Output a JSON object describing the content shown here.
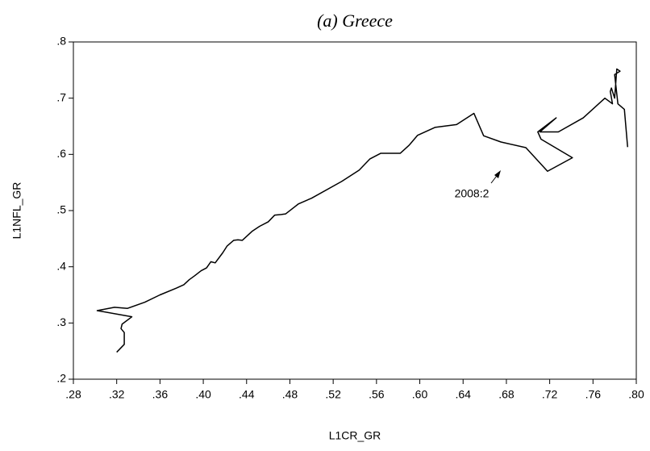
{
  "chart_data": {
    "type": "line",
    "title": "(a) Greece",
    "x_label": "L1CR_GR",
    "y_label": "L1NFL_GR",
    "color": "#000000",
    "annotation": "2008:2",
    "x": [
      0.32,
      0.327,
      0.327,
      0.324,
      0.325,
      0.334,
      0.302,
      0.318,
      0.33,
      0.346,
      0.36,
      0.375,
      0.382,
      0.387,
      0.392,
      0.398,
      0.403,
      0.407,
      0.411,
      0.418,
      0.422,
      0.428,
      0.432,
      0.436,
      0.445,
      0.452,
      0.46,
      0.466,
      0.472,
      0.476,
      0.488,
      0.5,
      0.528,
      0.544,
      0.554,
      0.564,
      0.582,
      0.59,
      0.598,
      0.614,
      0.634,
      0.65,
      0.659,
      0.675,
      0.698,
      0.718,
      0.741,
      0.712,
      0.709,
      0.726,
      0.711,
      0.728,
      0.751,
      0.771,
      0.778,
      0.776,
      0.777,
      0.78,
      0.782,
      0.785,
      0.78,
      0.783,
      0.789,
      0.792
    ],
    "values": [
      0.248,
      0.262,
      0.283,
      0.29,
      0.298,
      0.311,
      0.322,
      0.328,
      0.326,
      0.337,
      0.35,
      0.362,
      0.368,
      0.377,
      0.384,
      0.393,
      0.398,
      0.409,
      0.407,
      0.425,
      0.437,
      0.447,
      0.448,
      0.447,
      0.463,
      0.472,
      0.48,
      0.492,
      0.493,
      0.494,
      0.512,
      0.522,
      0.552,
      0.572,
      0.592,
      0.602,
      0.602,
      0.616,
      0.634,
      0.648,
      0.653,
      0.673,
      0.633,
      0.622,
      0.612,
      0.57,
      0.594,
      0.627,
      0.64,
      0.665,
      0.64,
      0.64,
      0.665,
      0.7,
      0.69,
      0.712,
      0.718,
      0.7,
      0.752,
      0.748,
      0.742,
      0.69,
      0.68,
      0.613
    ],
    "xlim": [
      0.28,
      0.8
    ],
    "xticks": [
      {
        "value": 0.28,
        "label": ".28"
      },
      {
        "value": 0.32,
        "label": ".32"
      },
      {
        "value": 0.36,
        "label": ".36"
      },
      {
        "value": 0.4,
        "label": ".40"
      },
      {
        "value": 0.44,
        "label": ".44"
      },
      {
        "value": 0.48,
        "label": ".48"
      },
      {
        "value": 0.52,
        "label": ".52"
      },
      {
        "value": 0.56,
        "label": ".56"
      },
      {
        "value": 0.6,
        "label": ".60"
      },
      {
        "value": 0.64,
        "label": ".64"
      },
      {
        "value": 0.68,
        "label": ".68"
      },
      {
        "value": 0.72,
        "label": ".72"
      },
      {
        "value": 0.76,
        "label": ".76"
      },
      {
        "value": 0.8,
        "label": ".80"
      }
    ],
    "ylim": [
      0.2,
      0.8
    ],
    "yticks": [
      {
        "value": 0.2,
        "label": ".2"
      },
      {
        "value": 0.3,
        "label": ".3"
      },
      {
        "value": 0.4,
        "label": ".4"
      },
      {
        "value": 0.5,
        "label": ".5"
      },
      {
        "value": 0.6,
        "label": ".6"
      },
      {
        "value": 0.7,
        "label": ".7"
      },
      {
        "value": 0.8,
        "label": ".8"
      }
    ]
  }
}
